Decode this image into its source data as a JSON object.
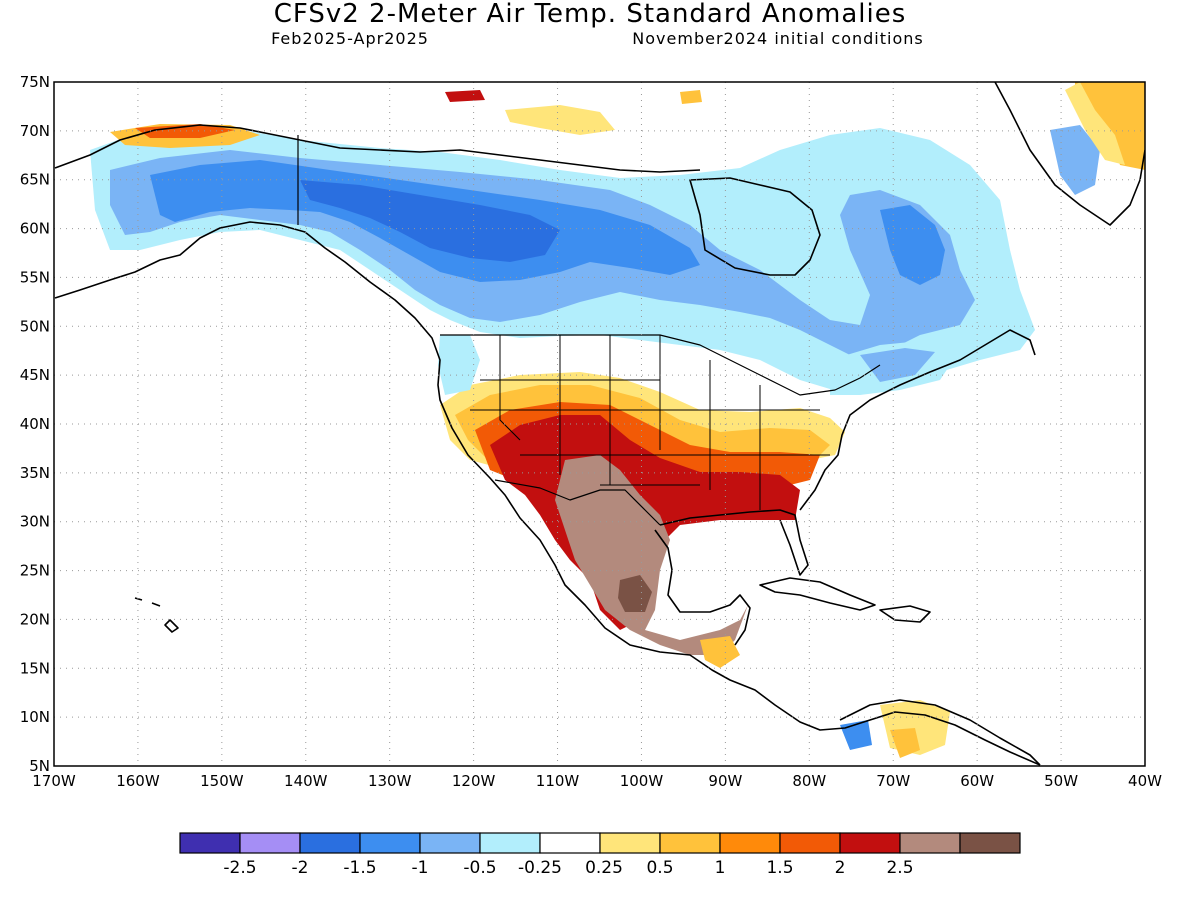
{
  "header": {
    "title": "CFSv2 2-Meter Air Temp. Standard Anomalies",
    "period": "Feb2025-Apr2025",
    "init": "November2024 initial conditions"
  },
  "axes": {
    "lat_labels": [
      "75N",
      "70N",
      "65N",
      "60N",
      "55N",
      "50N",
      "45N",
      "40N",
      "35N",
      "30N",
      "25N",
      "20N",
      "15N",
      "10N",
      "5N"
    ],
    "lon_labels": [
      "170W",
      "160W",
      "150W",
      "140W",
      "130W",
      "120W",
      "110W",
      "100W",
      "90W",
      "80W",
      "70W",
      "60W",
      "50W",
      "40W"
    ],
    "lat_range": [
      5,
      75
    ],
    "lon_range": [
      -170,
      -40
    ],
    "grid": "dotted"
  },
  "colorbar": {
    "colors": [
      "#3f2fb0",
      "#a58ef5",
      "#2a6fe0",
      "#3d8ef0",
      "#7ab4f5",
      "#b2eefc",
      "#ffffff",
      "#ffe57a",
      "#ffc23b",
      "#ff8a0a",
      "#f25a06",
      "#c20f0f",
      "#b38a7d",
      "#7a5245"
    ],
    "labels": [
      "-2.5",
      "-2",
      "-1.5",
      "-1",
      "-0.5",
      "-0.25",
      "0.25",
      "0.5",
      "1",
      "1.5",
      "2",
      "2.5"
    ]
  },
  "legend_colors": {
    "dark_blue": "#2a6fe0",
    "mid_blue": "#3d8ef0",
    "light_blue": "#7ab4f5",
    "pale_blue": "#b2eefc",
    "yellow": "#ffe57a",
    "orange": "#ffc23b",
    "dark_orange": "#f25a06",
    "red": "#c20f0f",
    "tan": "#b38a7d",
    "brown": "#7a5245"
  }
}
